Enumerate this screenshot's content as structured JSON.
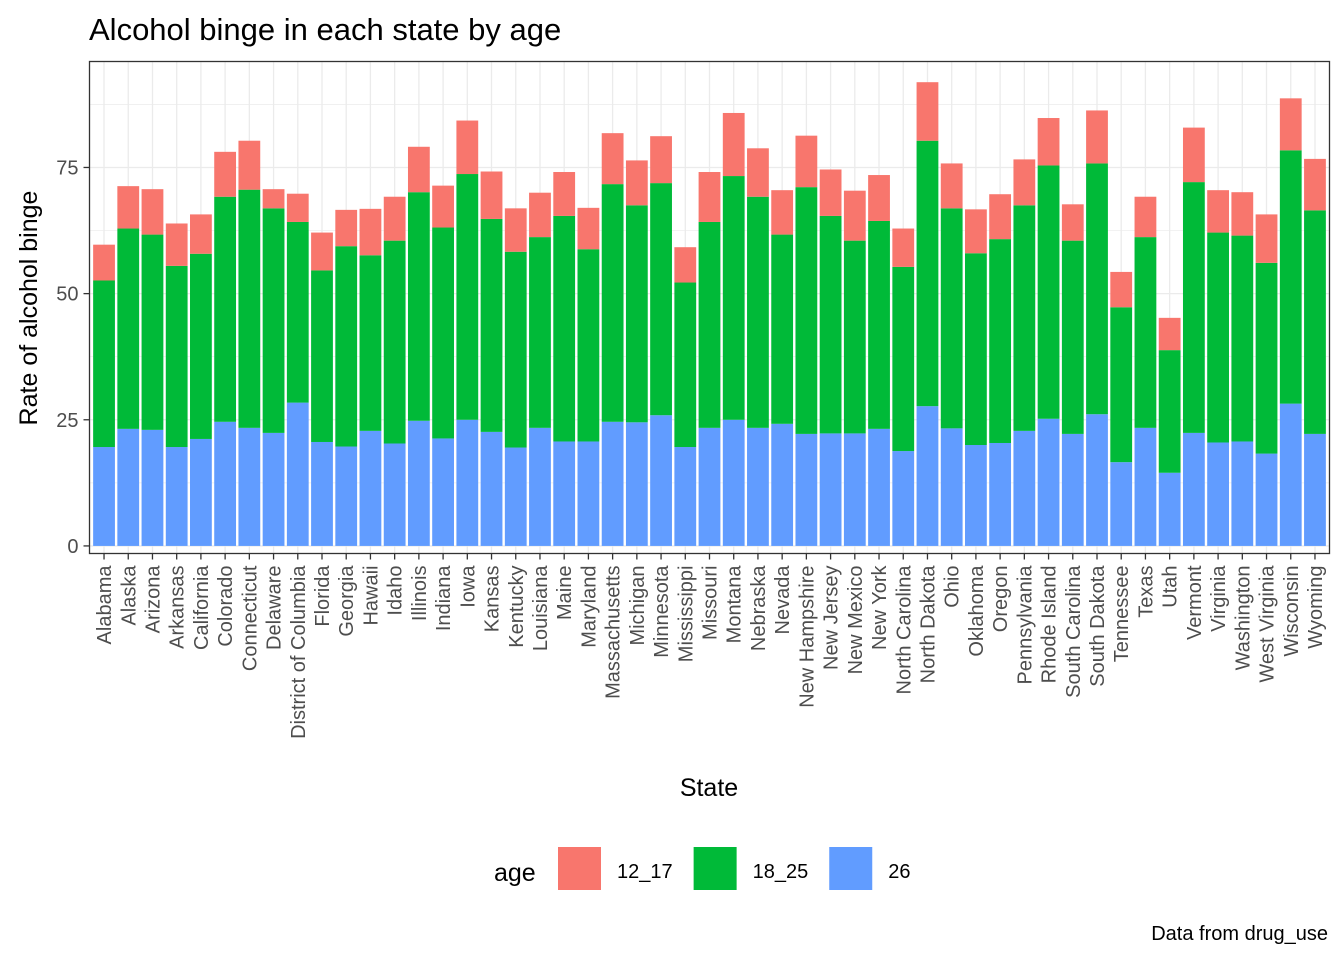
{
  "chart_data": {
    "type": "bar",
    "stacked": true,
    "title": "Alcohol binge in each state by age",
    "xlabel": "State",
    "ylabel": "Rate of alcohol binge",
    "caption": "Data from drug_use",
    "ylim": [
      -1.5,
      96
    ],
    "yticks": [
      0,
      25,
      50,
      75
    ],
    "grid": true,
    "legend_position": "bottom",
    "legend_title": "age",
    "categories": [
      "Alabama",
      "Alaska",
      "Arizona",
      "Arkansas",
      "California",
      "Colorado",
      "Connecticut",
      "Delaware",
      "District of Columbia",
      "Florida",
      "Georgia",
      "Hawaii",
      "Idaho",
      "Illinois",
      "Indiana",
      "Iowa",
      "Kansas",
      "Kentucky",
      "Louisiana",
      "Maine",
      "Maryland",
      "Massachusetts",
      "Michigan",
      "Minnesota",
      "Mississippi",
      "Missouri",
      "Montana",
      "Nebraska",
      "Nevada",
      "New Hampshire",
      "New Jersey",
      "New Mexico",
      "New York",
      "North Carolina",
      "North Dakota",
      "Ohio",
      "Oklahoma",
      "Oregon",
      "Pennsylvania",
      "Rhode Island",
      "South Carolina",
      "South Dakota",
      "Tennessee",
      "Texas",
      "Utah",
      "Vermont",
      "Virginia",
      "Washington",
      "West Virginia",
      "Wisconsin",
      "Wyoming"
    ],
    "series": [
      {
        "name": "12_17",
        "color": "#F8766D",
        "values": [
          7.1,
          8.4,
          9.0,
          8.4,
          7.8,
          8.9,
          9.7,
          3.8,
          5.6,
          7.5,
          7.2,
          9.2,
          8.7,
          9.0,
          8.3,
          10.6,
          9.4,
          8.6,
          8.8,
          8.7,
          8.2,
          10.1,
          8.9,
          9.3,
          7.0,
          9.9,
          12.5,
          9.6,
          8.8,
          10.2,
          9.2,
          9.9,
          9.1,
          7.6,
          11.6,
          8.9,
          8.7,
          8.9,
          9.1,
          9.4,
          7.2,
          10.5,
          7.0,
          8.0,
          6.4,
          10.8,
          8.4,
          8.6,
          9.6,
          10.3,
          10.2
        ]
      },
      {
        "name": "18_25",
        "color": "#00BA38",
        "values": [
          33.0,
          39.7,
          38.7,
          35.9,
          36.7,
          44.6,
          47.2,
          44.5,
          35.8,
          34.0,
          39.7,
          34.8,
          40.2,
          45.3,
          41.8,
          48.7,
          42.2,
          38.8,
          37.8,
          44.7,
          38.1,
          47.1,
          43.0,
          46.0,
          32.6,
          40.8,
          48.3,
          45.8,
          37.5,
          48.9,
          43.1,
          38.2,
          41.2,
          36.5,
          52.6,
          43.6,
          38.0,
          40.4,
          44.7,
          50.2,
          38.3,
          49.7,
          30.7,
          37.8,
          24.3,
          49.7,
          41.6,
          40.8,
          37.8,
          50.2,
          44.3
        ]
      },
      {
        "name": "26",
        "color": "#619CFF",
        "values": [
          19.6,
          23.2,
          23.0,
          19.6,
          21.2,
          24.6,
          23.4,
          22.4,
          28.4,
          20.6,
          19.7,
          22.8,
          20.3,
          24.8,
          21.3,
          25.0,
          22.6,
          19.5,
          23.4,
          20.7,
          20.7,
          24.6,
          24.5,
          25.9,
          19.6,
          23.4,
          25.0,
          23.4,
          24.2,
          22.2,
          22.3,
          22.3,
          23.2,
          18.8,
          27.7,
          23.3,
          20.0,
          20.4,
          22.8,
          25.2,
          22.2,
          26.1,
          16.6,
          23.4,
          14.5,
          22.4,
          20.5,
          20.7,
          18.3,
          28.2,
          22.2
        ]
      }
    ]
  }
}
